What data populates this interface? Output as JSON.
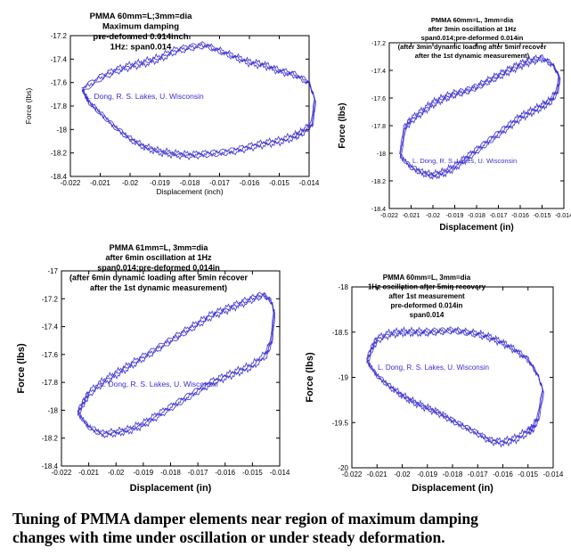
{
  "chart_data": [
    {
      "type": "line",
      "title": [
        "PMMA 60mm=L;3mm=dia",
        "Maximum damping",
        "pre-deformed 0.014inch",
        "1Hz: span0.014"
      ],
      "xlabel": "Displacement (inch)",
      "ylabel": "Force (lbs)",
      "xlim": [
        -0.022,
        -0.014
      ],
      "ylim": [
        -18.4,
        -17.2
      ],
      "xticks": [
        -0.022,
        -0.021,
        -0.02,
        -0.019,
        -0.018,
        -0.017,
        -0.016,
        -0.015,
        -0.014
      ],
      "xtick_labels": [
        "-0.022",
        "-0.021",
        "-0.02",
        "-0.019",
        "-0.018",
        "-0.017",
        "-0.016",
        "-0.015",
        "-0.014"
      ],
      "yticks": [
        -17.2,
        -17.4,
        -17.6,
        -17.8,
        -18,
        -18.2,
        -18.4
      ],
      "ytick_labels": [
        "-17.2",
        "-17.4",
        "-17.6",
        "-17.8",
        "-18",
        "-18.2",
        "-18.4"
      ],
      "annotation": "L. Dong, R. S. Lakes, U. Wisconsin",
      "series": [
        {
          "name": "upper branch",
          "x": [
            -0.0216,
            -0.021,
            -0.0205,
            -0.02,
            -0.0195,
            -0.019,
            -0.0185,
            -0.018,
            -0.0175,
            -0.017,
            -0.0165,
            -0.016,
            -0.0155,
            -0.015,
            -0.0145,
            -0.014,
            -0.0138
          ],
          "y": [
            -17.66,
            -17.56,
            -17.5,
            -17.46,
            -17.43,
            -17.39,
            -17.33,
            -17.3,
            -17.28,
            -17.33,
            -17.38,
            -17.43,
            -17.45,
            -17.5,
            -17.53,
            -17.6,
            -17.75
          ]
        },
        {
          "name": "lower branch",
          "x": [
            -0.0138,
            -0.0139,
            -0.0142,
            -0.0145,
            -0.015,
            -0.0155,
            -0.016,
            -0.0165,
            -0.017,
            -0.0175,
            -0.018,
            -0.0185,
            -0.019,
            -0.0195,
            -0.02,
            -0.0205,
            -0.021,
            -0.0214,
            -0.0216
          ],
          "y": [
            -17.75,
            -17.95,
            -18.02,
            -18.06,
            -18.1,
            -18.12,
            -18.15,
            -18.18,
            -18.2,
            -18.21,
            -18.22,
            -18.21,
            -18.19,
            -18.15,
            -18.08,
            -17.98,
            -17.86,
            -17.76,
            -17.66
          ]
        }
      ]
    },
    {
      "type": "line",
      "title": [
        "PMMA 60mm=L, 3mm=dia",
        "after 3min oscillation at 1Hz",
        "span0.014;pre-deformed 0.014in",
        "(after 3min dynamic loading after 5min recover",
        "after the 1st dynamic measurement)"
      ],
      "xlabel": "Displacement (in)",
      "ylabel": "Force (lbs)",
      "xlim": [
        -0.022,
        -0.014
      ],
      "ylim": [
        -18.4,
        -17.2
      ],
      "xticks": [
        -0.022,
        -0.021,
        -0.02,
        -0.019,
        -0.018,
        -0.017,
        -0.016,
        -0.015,
        -0.014
      ],
      "xtick_labels": [
        "-0.022",
        "-0.021",
        "-0.02",
        "-0.019",
        "-0.018",
        "-0.017",
        "-0.016",
        "-0.015",
        "-0.014"
      ],
      "yticks": [
        -17.2,
        -17.4,
        -17.6,
        -17.8,
        -18,
        -18.2,
        -18.4
      ],
      "ytick_labels": [
        "-17.2",
        "-17.4",
        "-17.6",
        "-17.8",
        "-18",
        "-18.2",
        "-18.4"
      ],
      "annotation": "L. Dong, R. S. Lakes, U. Wisconsin",
      "series": [
        {
          "name": "upper branch",
          "x": [
            -0.0215,
            -0.0213,
            -0.021,
            -0.0205,
            -0.02,
            -0.0195,
            -0.019,
            -0.0185,
            -0.018,
            -0.0175,
            -0.017,
            -0.0165,
            -0.016,
            -0.0155,
            -0.015,
            -0.0145,
            -0.0142
          ],
          "y": [
            -18.02,
            -17.82,
            -17.76,
            -17.7,
            -17.64,
            -17.6,
            -17.57,
            -17.55,
            -17.52,
            -17.48,
            -17.44,
            -17.4,
            -17.36,
            -17.33,
            -17.31,
            -17.36,
            -17.45
          ]
        },
        {
          "name": "lower branch",
          "x": [
            -0.0142,
            -0.0143,
            -0.0146,
            -0.015,
            -0.0155,
            -0.016,
            -0.0165,
            -0.017,
            -0.0175,
            -0.018,
            -0.0185,
            -0.019,
            -0.0195,
            -0.02,
            -0.0205,
            -0.021,
            -0.0215
          ],
          "y": [
            -17.45,
            -17.55,
            -17.62,
            -17.66,
            -17.7,
            -17.74,
            -17.8,
            -17.86,
            -17.92,
            -17.98,
            -18.04,
            -18.1,
            -18.14,
            -18.16,
            -18.14,
            -18.1,
            -18.02
          ]
        }
      ]
    },
    {
      "type": "line",
      "title": [
        "PMMA 61mm=L, 3mm=dia",
        "after 6min oscillation at 1Hz",
        "span0.014;pre-deformed 0.014in",
        "(after 6min dynamic loading after 5min recover",
        "after the 1st dynamic measurement)"
      ],
      "xlabel": "Displacement (in)",
      "ylabel": "Force (lbs)",
      "xlim": [
        -0.022,
        -0.014
      ],
      "ylim": [
        -18.4,
        -17
      ],
      "xticks": [
        -0.022,
        -0.021,
        -0.02,
        -0.019,
        -0.018,
        -0.017,
        -0.016,
        -0.015,
        -0.014
      ],
      "xtick_labels": [
        "-0.022",
        "-0.021",
        "-0.02",
        "-0.019",
        "-0.018",
        "-0.017",
        "-0.016",
        "-0.015",
        "-0.014"
      ],
      "yticks": [
        -17,
        -17.2,
        -17.4,
        -17.6,
        -17.8,
        -18,
        -18.2,
        -18.4
      ],
      "ytick_labels": [
        "-17",
        "-17.2",
        "-17.4",
        "-17.6",
        "-17.8",
        "-18",
        "-18.2",
        "-18.4"
      ],
      "annotation": "L. Dong, R. S. Lakes, U. Wisconsin",
      "series": [
        {
          "name": "upper branch",
          "x": [
            -0.0214,
            -0.0212,
            -0.021,
            -0.0205,
            -0.02,
            -0.0195,
            -0.019,
            -0.0185,
            -0.018,
            -0.0175,
            -0.017,
            -0.0165,
            -0.016,
            -0.0155,
            -0.015,
            -0.0146,
            -0.0143,
            -0.0142
          ],
          "y": [
            -18.02,
            -17.95,
            -17.88,
            -17.8,
            -17.74,
            -17.68,
            -17.62,
            -17.56,
            -17.5,
            -17.44,
            -17.38,
            -17.32,
            -17.28,
            -17.24,
            -17.2,
            -17.17,
            -17.22,
            -17.3
          ]
        },
        {
          "name": "lower branch",
          "x": [
            -0.0142,
            -0.0143,
            -0.0145,
            -0.015,
            -0.0155,
            -0.016,
            -0.0165,
            -0.017,
            -0.0175,
            -0.018,
            -0.0185,
            -0.019,
            -0.0195,
            -0.02,
            -0.0205,
            -0.021,
            -0.0214
          ],
          "y": [
            -17.3,
            -17.5,
            -17.6,
            -17.68,
            -17.72,
            -17.76,
            -17.8,
            -17.86,
            -17.92,
            -17.98,
            -18.04,
            -18.1,
            -18.14,
            -18.16,
            -18.17,
            -18.12,
            -18.02
          ]
        }
      ]
    },
    {
      "type": "line",
      "title": [
        "PMMA 60mm=L, 3mm=dia",
        "1Hz oscillation after 5min recovery",
        "after 1st measurement",
        "pre-deformed 0.014in",
        "span0.014"
      ],
      "xlabel": "Displacement (in)",
      "ylabel": "Force (lbs)",
      "xlim": [
        -0.022,
        -0.014
      ],
      "ylim": [
        -20,
        -18
      ],
      "xticks": [
        -0.022,
        -0.021,
        -0.02,
        -0.019,
        -0.018,
        -0.017,
        -0.016,
        -0.015,
        -0.014
      ],
      "xtick_labels": [
        "-0.022",
        "-0.021",
        "-0.02",
        "-0.019",
        "-0.018",
        "-0.017",
        "-0.016",
        "-0.015",
        "-0.014"
      ],
      "yticks": [
        -18,
        -18.5,
        -19,
        -19.5,
        -20
      ],
      "ytick_labels": [
        "-18",
        "-18.5",
        "-19",
        "-19.5",
        "-20"
      ],
      "annotation": "L. Dong, R. S. Lakes, U. Wisconsin",
      "series": [
        {
          "name": "upper branch",
          "x": [
            -0.0214,
            -0.0212,
            -0.021,
            -0.0205,
            -0.02,
            -0.0195,
            -0.019,
            -0.0185,
            -0.018,
            -0.0175,
            -0.017,
            -0.0165,
            -0.016,
            -0.0155,
            -0.015,
            -0.0146,
            -0.0144
          ],
          "y": [
            -18.82,
            -18.68,
            -18.58,
            -18.52,
            -18.5,
            -18.5,
            -18.5,
            -18.49,
            -18.48,
            -18.5,
            -18.52,
            -18.56,
            -18.62,
            -18.7,
            -18.8,
            -18.98,
            -19.15
          ]
        },
        {
          "name": "lower branch",
          "x": [
            -0.0144,
            -0.0146,
            -0.0148,
            -0.015,
            -0.0155,
            -0.016,
            -0.0165,
            -0.017,
            -0.0175,
            -0.018,
            -0.0185,
            -0.019,
            -0.0195,
            -0.02,
            -0.0205,
            -0.021,
            -0.0214
          ],
          "y": [
            -19.15,
            -19.45,
            -19.56,
            -19.6,
            -19.68,
            -19.72,
            -19.7,
            -19.62,
            -19.55,
            -19.48,
            -19.4,
            -19.34,
            -19.28,
            -19.2,
            -19.1,
            -18.98,
            -18.82
          ]
        }
      ]
    }
  ],
  "caption": {
    "line1": "Tuning of PMMA damper elements near region of maximum damping",
    "line2": "changes with time under oscillation or under steady deformation."
  },
  "colors": {
    "trace": "#3a2fd0",
    "axis": "#000000"
  }
}
